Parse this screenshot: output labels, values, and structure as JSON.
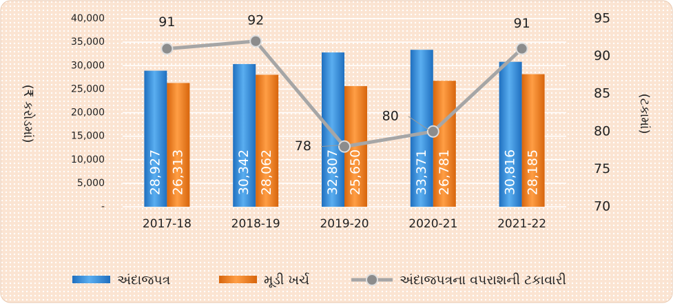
{
  "chart_data": {
    "type": "bar_line",
    "categories": [
      "2017-18",
      "2018-19",
      "2019-20",
      "2020-21",
      "2021-22"
    ],
    "series": [
      {
        "name": "અંદાજપત્ર",
        "color": "#2e86d6",
        "values": [
          28927,
          30342,
          32807,
          33371,
          30816
        ],
        "value_labels": [
          "28,927",
          "30,342",
          "32,807",
          "33,371",
          "30,816"
        ]
      },
      {
        "name": "મૂડી ખર્ચ",
        "color": "#f07f1e",
        "values": [
          26313,
          28062,
          25650,
          26781,
          28185
        ],
        "value_labels": [
          "26,313",
          "28,062",
          "25,650",
          "26,781",
          "28,185"
        ]
      },
      {
        "name": "અંદાજપત્રના વપરાશની ટકાવારી",
        "color": "#a6a6a6",
        "axis": "y2",
        "type": "line",
        "values": [
          91,
          92,
          78,
          80,
          91
        ]
      }
    ],
    "ylabel": "(₹ કરોડમાં)",
    "y2label": "(ટકામાં)",
    "ylim": [
      0,
      40000
    ],
    "yticks": [
      {
        "value": 0,
        "label": "-"
      },
      {
        "value": 5000,
        "label": "5,000"
      },
      {
        "value": 10000,
        "label": "10,000"
      },
      {
        "value": 15000,
        "label": "15,000"
      },
      {
        "value": 20000,
        "label": "20,000"
      },
      {
        "value": 25000,
        "label": "25,000"
      },
      {
        "value": 30000,
        "label": "30,000"
      },
      {
        "value": 35000,
        "label": "35,000"
      },
      {
        "value": 40000,
        "label": "40,000"
      }
    ],
    "y2lim": [
      70,
      95
    ],
    "y2ticks": [
      70,
      75,
      80,
      85,
      90,
      95
    ],
    "grid": true,
    "legend": "bottom"
  }
}
